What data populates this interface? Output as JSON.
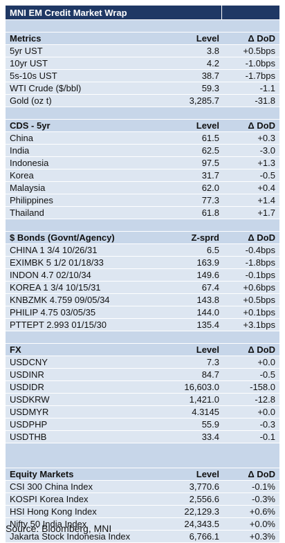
{
  "title": "MNI EM Credit Market Wrap",
  "source": "Source: Bloomberg, MNI",
  "sections": [
    {
      "header": [
        "Metrics",
        "Level",
        "Δ DoD"
      ],
      "rows": [
        [
          "5yr UST",
          "3.8",
          "+0.5bps"
        ],
        [
          "10yr UST",
          "4.2",
          "-1.0bps"
        ],
        [
          "5s-10s UST",
          "38.7",
          "-1.7bps"
        ],
        [
          "WTI Crude ($/bbl)",
          "59.3",
          "-1.1"
        ],
        [
          "Gold (oz t)",
          "3,285.7",
          "-31.8"
        ]
      ]
    },
    {
      "header": [
        "CDS - 5yr",
        "Level",
        "Δ DoD"
      ],
      "rows": [
        [
          "China",
          "61.5",
          "+0.3"
        ],
        [
          "India",
          "62.5",
          "-3.0"
        ],
        [
          "Indonesia",
          "97.5",
          "+1.3"
        ],
        [
          "Korea",
          "31.7",
          "-0.5"
        ],
        [
          "Malaysia",
          "62.0",
          "+0.4"
        ],
        [
          "Philippines",
          "77.3",
          "+1.4"
        ],
        [
          "Thailand",
          "61.8",
          "+1.7"
        ]
      ]
    },
    {
      "header": [
        "$ Bonds (Govnt/Agency)",
        "Z-sprd",
        "Δ DoD"
      ],
      "rows": [
        [
          "CHINA 1 3/4 10/26/31",
          "6.5",
          "-0.4bps"
        ],
        [
          "EXIMBK 5 1/2 01/18/33",
          "163.9",
          "-1.8bps"
        ],
        [
          "INDON 4.7 02/10/34",
          "149.6",
          "-0.1bps"
        ],
        [
          "KOREA 1 3/4 10/15/31",
          "67.4",
          "+0.6bps"
        ],
        [
          "KNBZMK 4.759 09/05/34",
          "143.8",
          "+0.5bps"
        ],
        [
          "PHILIP 4.75 03/05/35",
          "144.0",
          "+0.1bps"
        ],
        [
          "PTTEPT 2.993 01/15/30",
          "135.4",
          "+3.1bps"
        ]
      ]
    },
    {
      "header": [
        "FX",
        "Level",
        "Δ DoD"
      ],
      "rows": [
        [
          "USDCNY",
          "7.3",
          "+0.0"
        ],
        [
          "USDINR",
          "84.7",
          "-0.5"
        ],
        [
          "USDIDR",
          "16,603.0",
          "-158.0"
        ],
        [
          "USDKRW",
          "1,421.0",
          "-12.8"
        ],
        [
          "USDMYR",
          "4.3145",
          "+0.0"
        ],
        [
          "USDPHP",
          "55.9",
          "-0.3"
        ],
        [
          "USDTHB",
          "33.4",
          "-0.1"
        ]
      ]
    },
    {
      "header": [
        "Equity Markets",
        "Level",
        "Δ DoD"
      ],
      "rows": [
        [
          "CSI 300 China Index",
          "3,770.6",
          "-0.1%"
        ],
        [
          "KOSPI Korea Index",
          "2,556.6",
          "-0.3%"
        ],
        [
          "HSI Hong Kong Index",
          "22,129.3",
          "+0.6%"
        ],
        [
          "Nifty 50 India Index",
          "24,343.5",
          "+0.0%"
        ],
        [
          "Jakarta Stock Indonesia Index",
          "6,766.1",
          "+0.3%"
        ]
      ]
    }
  ]
}
